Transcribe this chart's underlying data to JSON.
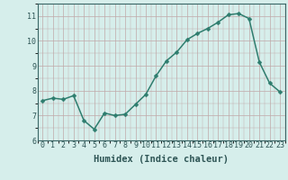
{
  "x": [
    0,
    1,
    2,
    3,
    4,
    5,
    6,
    7,
    8,
    9,
    10,
    11,
    12,
    13,
    14,
    15,
    16,
    17,
    18,
    19,
    20,
    21,
    22,
    23
  ],
  "y": [
    7.6,
    7.7,
    7.65,
    7.8,
    6.8,
    6.45,
    7.1,
    7.0,
    7.05,
    7.45,
    7.85,
    8.6,
    9.2,
    9.55,
    10.05,
    10.3,
    10.5,
    10.75,
    11.05,
    11.1,
    10.9,
    9.15,
    8.3,
    7.95
  ],
  "line_color": "#2e7d6e",
  "marker": "D",
  "marker_size": 2.5,
  "bg_color": "#d6eeeb",
  "grid_major_color": "#c0a8a8",
  "xlabel": "Humidex (Indice chaleur)",
  "xlabel_fontsize": 7.5,
  "ylim": [
    6,
    11.5
  ],
  "xlim": [
    -0.5,
    23.5
  ],
  "yticks": [
    6,
    7,
    8,
    9,
    10,
    11
  ],
  "xticks": [
    0,
    1,
    2,
    3,
    4,
    5,
    6,
    7,
    8,
    9,
    10,
    11,
    12,
    13,
    14,
    15,
    16,
    17,
    18,
    19,
    20,
    21,
    22,
    23
  ],
  "tick_fontsize": 6,
  "line_width": 1.1
}
